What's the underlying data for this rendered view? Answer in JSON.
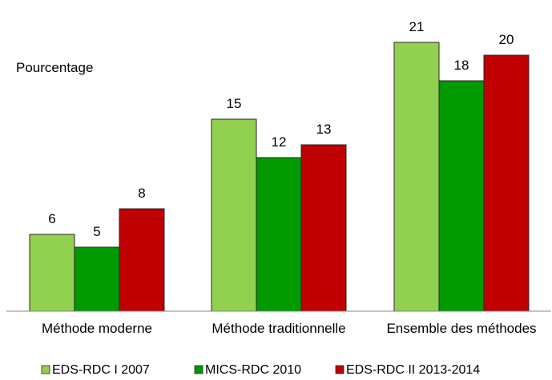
{
  "chart_data": {
    "type": "bar",
    "ylabel": "Pourcentage",
    "categories": [
      "Méthode moderne",
      "Méthode traditionnelle",
      "Ensemble des méthodes"
    ],
    "ylim": [
      0,
      23
    ],
    "grid": false,
    "legend_position": "bottom",
    "series": [
      {
        "name": "EDS-RDC I 2007",
        "values": [
          6,
          15,
          21
        ],
        "color": "#92d050"
      },
      {
        "name": "MICS-RDC 2010",
        "values": [
          5,
          12,
          18
        ],
        "color": "#009900"
      },
      {
        "name": "EDS-RDC II 2013-2014",
        "values": [
          8,
          13,
          20
        ],
        "color": "#c00000"
      }
    ]
  }
}
